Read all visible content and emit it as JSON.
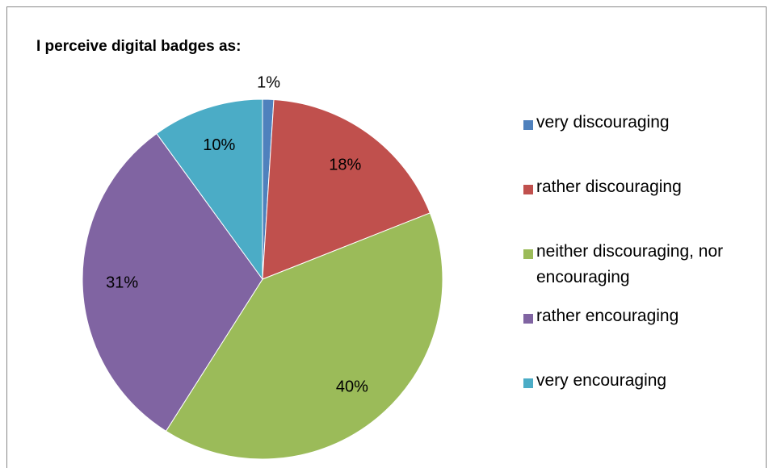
{
  "chart_data": {
    "type": "pie",
    "title": "I perceive digital badges as:",
    "categories": [
      "very discouraging",
      "rather discouraging",
      "neither discouraging, nor encouraging",
      "rather encouraging",
      "very encouraging"
    ],
    "values": [
      1,
      18,
      40,
      31,
      10
    ],
    "value_labels": [
      "1%",
      "18%",
      "40%",
      "31%",
      "10%"
    ],
    "colors": [
      "#4f81bd",
      "#c0504d",
      "#9bbb59",
      "#8064a2",
      "#4bacc6"
    ],
    "legend": "right"
  }
}
